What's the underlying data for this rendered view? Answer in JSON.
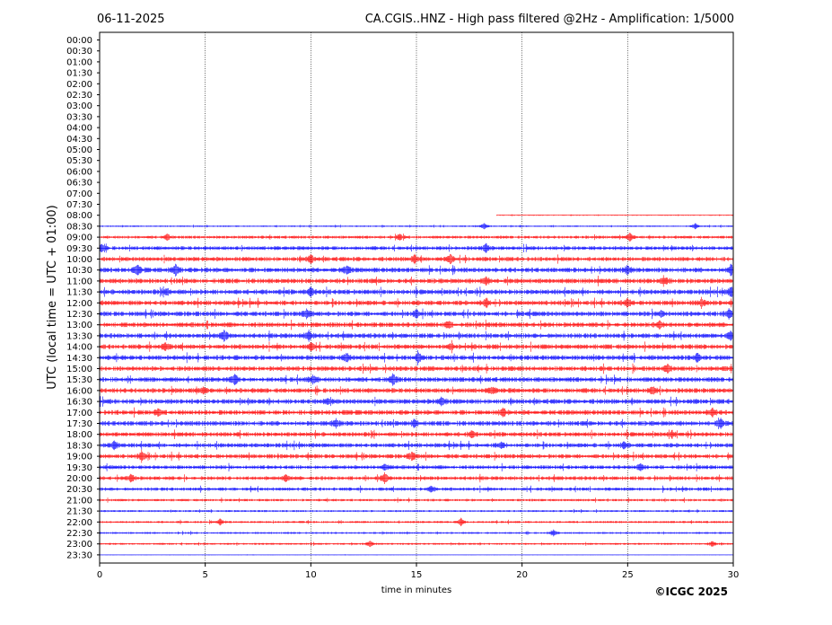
{
  "header": {
    "date": "06-11-2025",
    "title": "CA.CGIS..HNZ - High pass filtered @2Hz - Amplification: 1/5000"
  },
  "footer": {
    "copyright": "©ICGC 2025"
  },
  "chart_data": {
    "type": "line",
    "xlabel": "time in minutes",
    "ylabel": "UTC (local time = UTC + 01:00)",
    "xlim": [
      0,
      30
    ],
    "x_ticks": [
      0,
      5,
      10,
      15,
      20,
      25,
      30
    ],
    "x_tick_labels": [
      "0",
      "5",
      "10",
      "15",
      "20",
      "25",
      "30"
    ],
    "grid": "vertical dotted lines at 5-minute intervals",
    "row_labels": [
      "00:00",
      "00:30",
      "01:00",
      "01:30",
      "02:00",
      "02:30",
      "03:00",
      "03:30",
      "04:00",
      "04:30",
      "05:00",
      "05:30",
      "06:00",
      "06:30",
      "07:00",
      "07:30",
      "08:00",
      "08:30",
      "09:00",
      "09:30",
      "10:00",
      "10:30",
      "11:00",
      "11:30",
      "12:00",
      "12:30",
      "13:00",
      "13:30",
      "14:00",
      "14:30",
      "15:00",
      "15:30",
      "16:00",
      "16:30",
      "17:00",
      "17:30",
      "18:00",
      "18:30",
      "19:00",
      "19:30",
      "20:00",
      "20:30",
      "21:00",
      "21:30",
      "22:00",
      "22:30",
      "23:00",
      "23:30"
    ],
    "colors": {
      "even_rows": "#ff0000",
      "odd_rows": "#0000ff",
      "grid": "#000000"
    },
    "data_start": {
      "row": "08:00",
      "minute": 18.8
    },
    "data_end_row": "23:30",
    "noise_level": {
      "08:00": 0.4,
      "08:30": 0.6,
      "09:00": 1.2,
      "09:30": 1.6,
      "10:00": 1.8,
      "10:30": 2.0,
      "11:00": 2.0,
      "11:30": 2.0,
      "12:00": 2.0,
      "12:30": 2.0,
      "13:00": 2.0,
      "13:30": 2.0,
      "14:00": 2.0,
      "14:30": 2.0,
      "15:00": 2.0,
      "15:30": 2.0,
      "16:00": 2.0,
      "16:30": 2.0,
      "17:00": 2.0,
      "17:30": 2.0,
      "18:00": 1.8,
      "18:30": 1.8,
      "19:00": 1.8,
      "19:30": 1.6,
      "20:00": 1.6,
      "20:30": 1.4,
      "21:00": 1.0,
      "21:30": 0.8,
      "22:00": 0.9,
      "22:30": 0.8,
      "23:00": 0.8,
      "23:30": 0.2
    },
    "bursts": [
      {
        "row": "08:30",
        "minute": 18.2,
        "amp": 3
      },
      {
        "row": "08:30",
        "minute": 28.2,
        "amp": 3
      },
      {
        "row": "09:00",
        "minute": 3.2,
        "amp": 3
      },
      {
        "row": "09:00",
        "minute": 14.2,
        "amp": 3
      },
      {
        "row": "09:00",
        "minute": 25.1,
        "amp": 4
      },
      {
        "row": "09:30",
        "minute": 0.1,
        "amp": 4
      },
      {
        "row": "09:30",
        "minute": 18.3,
        "amp": 4
      },
      {
        "row": "10:00",
        "minute": 10.0,
        "amp": 4
      },
      {
        "row": "10:00",
        "minute": 14.9,
        "amp": 4
      },
      {
        "row": "10:00",
        "minute": 16.6,
        "amp": 4
      },
      {
        "row": "10:30",
        "minute": 1.8,
        "amp": 4
      },
      {
        "row": "10:30",
        "minute": 3.6,
        "amp": 5
      },
      {
        "row": "10:30",
        "minute": 11.7,
        "amp": 4
      },
      {
        "row": "10:30",
        "minute": 25.0,
        "amp": 4
      },
      {
        "row": "10:30",
        "minute": 29.9,
        "amp": 5
      },
      {
        "row": "11:00",
        "minute": 18.3,
        "amp": 4
      },
      {
        "row": "11:00",
        "minute": 26.8,
        "amp": 3
      },
      {
        "row": "11:30",
        "minute": 3.2,
        "amp": 3
      },
      {
        "row": "11:30",
        "minute": 10.0,
        "amp": 4
      },
      {
        "row": "11:30",
        "minute": 29.9,
        "amp": 5
      },
      {
        "row": "12:00",
        "minute": 18.3,
        "amp": 4
      },
      {
        "row": "12:00",
        "minute": 25.0,
        "amp": 4
      },
      {
        "row": "12:00",
        "minute": 28.5,
        "amp": 3
      },
      {
        "row": "12:30",
        "minute": 9.8,
        "amp": 4
      },
      {
        "row": "12:30",
        "minute": 15.0,
        "amp": 3
      },
      {
        "row": "12:30",
        "minute": 26.6,
        "amp": 3
      },
      {
        "row": "12:30",
        "minute": 29.8,
        "amp": 5
      },
      {
        "row": "13:00",
        "minute": 16.5,
        "amp": 3
      },
      {
        "row": "13:00",
        "minute": 26.5,
        "amp": 4
      },
      {
        "row": "13:30",
        "minute": 5.9,
        "amp": 5
      },
      {
        "row": "13:30",
        "minute": 9.9,
        "amp": 5
      },
      {
        "row": "13:30",
        "minute": 29.9,
        "amp": 4
      },
      {
        "row": "14:00",
        "minute": 3.1,
        "amp": 4
      },
      {
        "row": "14:00",
        "minute": 10.0,
        "amp": 4
      },
      {
        "row": "14:00",
        "minute": 16.6,
        "amp": 3
      },
      {
        "row": "14:30",
        "minute": 11.7,
        "amp": 4
      },
      {
        "row": "14:30",
        "minute": 15.1,
        "amp": 4
      },
      {
        "row": "14:30",
        "minute": 28.3,
        "amp": 4
      },
      {
        "row": "15:00",
        "minute": 26.9,
        "amp": 4
      },
      {
        "row": "15:30",
        "minute": 6.4,
        "amp": 5
      },
      {
        "row": "15:30",
        "minute": 10.1,
        "amp": 4
      },
      {
        "row": "15:30",
        "minute": 13.9,
        "amp": 5
      },
      {
        "row": "16:00",
        "minute": 4.9,
        "amp": 3
      },
      {
        "row": "16:00",
        "minute": 18.6,
        "amp": 3
      },
      {
        "row": "16:00",
        "minute": 26.2,
        "amp": 3
      },
      {
        "row": "16:30",
        "minute": 10.8,
        "amp": 3
      },
      {
        "row": "16:30",
        "minute": 16.2,
        "amp": 4
      },
      {
        "row": "17:00",
        "minute": 2.8,
        "amp": 4
      },
      {
        "row": "17:00",
        "minute": 19.1,
        "amp": 4
      },
      {
        "row": "17:00",
        "minute": 29.0,
        "amp": 4
      },
      {
        "row": "17:30",
        "minute": 11.2,
        "amp": 4
      },
      {
        "row": "17:30",
        "minute": 14.9,
        "amp": 4
      },
      {
        "row": "17:30",
        "minute": 29.4,
        "amp": 4
      },
      {
        "row": "18:00",
        "minute": 17.6,
        "amp": 3
      },
      {
        "row": "18:00",
        "minute": 27.1,
        "amp": 3
      },
      {
        "row": "18:30",
        "minute": 0.7,
        "amp": 4
      },
      {
        "row": "18:30",
        "minute": 19.0,
        "amp": 3
      },
      {
        "row": "18:30",
        "minute": 24.8,
        "amp": 3
      },
      {
        "row": "19:00",
        "minute": 2.0,
        "amp": 4
      },
      {
        "row": "19:00",
        "minute": 14.8,
        "amp": 4
      },
      {
        "row": "19:30",
        "minute": 13.5,
        "amp": 3
      },
      {
        "row": "19:30",
        "minute": 25.6,
        "amp": 3
      },
      {
        "row": "20:00",
        "minute": 1.5,
        "amp": 4
      },
      {
        "row": "20:00",
        "minute": 8.8,
        "amp": 3
      },
      {
        "row": "20:00",
        "minute": 13.5,
        "amp": 5
      },
      {
        "row": "20:30",
        "minute": 15.7,
        "amp": 3
      },
      {
        "row": "22:00",
        "minute": 5.7,
        "amp": 3
      },
      {
        "row": "22:00",
        "minute": 17.1,
        "amp": 4
      },
      {
        "row": "22:30",
        "minute": 21.5,
        "amp": 3
      },
      {
        "row": "23:00",
        "minute": 12.8,
        "amp": 3
      },
      {
        "row": "23:00",
        "minute": 29.0,
        "amp": 3
      }
    ]
  }
}
